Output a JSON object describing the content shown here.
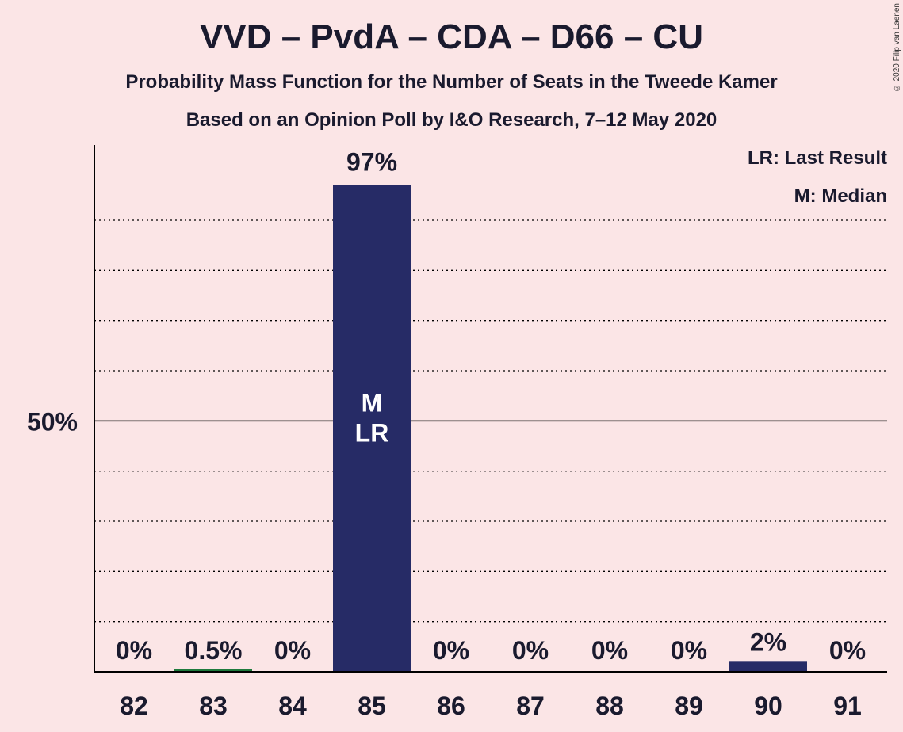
{
  "title": "VVD – PvdA – CDA – D66 – CU",
  "subtitle": "Probability Mass Function for the Number of Seats in the Tweede Kamer",
  "subtitle2": "Based on an Opinion Poll by I&O Research, 7–12 May 2020",
  "copyright": "© 2020 Filip van Laenen",
  "legend": {
    "last_result": "LR: Last Result",
    "median": "M: Median"
  },
  "colors": {
    "background": "#fbe5e6",
    "bar": "#262b66",
    "bar_small": "#1e7a3c",
    "text": "#1a1a2e"
  },
  "chart_data": {
    "type": "bar",
    "categories": [
      "82",
      "83",
      "84",
      "85",
      "86",
      "87",
      "88",
      "89",
      "90",
      "91"
    ],
    "values": [
      0,
      0.5,
      0,
      97,
      0,
      0,
      0,
      0,
      2,
      0
    ],
    "value_labels": [
      "0%",
      "0.5%",
      "0%",
      "97%",
      "0%",
      "0%",
      "0%",
      "0%",
      "2%",
      "0%"
    ],
    "ylim": [
      0,
      105
    ],
    "yticks": [
      {
        "value": 50,
        "label": "50%"
      }
    ],
    "gridlines": [
      10,
      20,
      30,
      40,
      60,
      70,
      80,
      90
    ],
    "median_category": "85",
    "last_result_category": "85",
    "bar_marks": {
      "median": "M",
      "last_result": "LR"
    }
  }
}
